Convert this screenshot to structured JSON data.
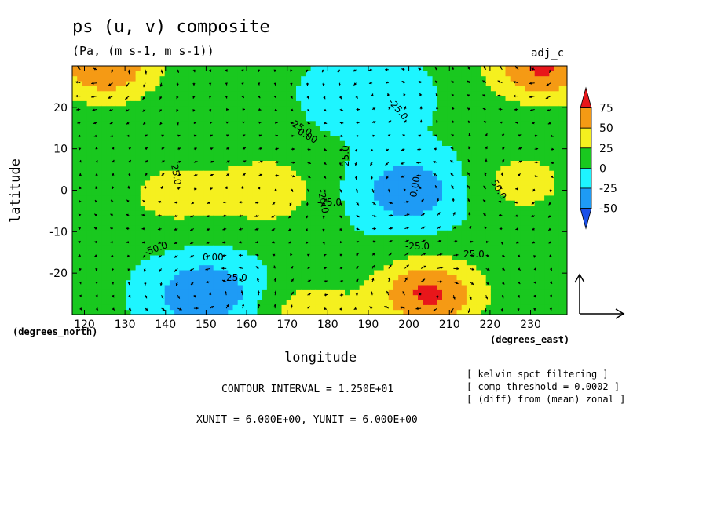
{
  "chart_data": {
    "type": "heatmap",
    "title": "ps (u, v) composite",
    "units_label": "(Pa, (m s-1, m s-1))",
    "experiment": "adj_c",
    "xlabel": "longitude",
    "ylabel": "latitude",
    "x_unit": "(degrees_east)",
    "y_unit": "(degrees_north)",
    "xlim": [
      117,
      239
    ],
    "ylim": [
      -30,
      30
    ],
    "x_ticks": [
      120,
      130,
      140,
      150,
      160,
      170,
      180,
      190,
      200,
      210,
      220,
      230
    ],
    "y_ticks": [
      20,
      10,
      0,
      -10,
      -20
    ],
    "colorbar": {
      "labels": [
        "75",
        "50",
        "25",
        "0",
        "-25",
        "-50"
      ],
      "colors": [
        "#e8161a",
        "#f59a14",
        "#f5f01f",
        "#19c81f",
        "#1ef5ff",
        "#1e9bf5",
        "#1a50e8"
      ]
    },
    "contour_labels": [
      "-25.0",
      "0.00",
      "25.0",
      "-25.0",
      "-25.0",
      "25.0",
      "-25.0",
      "0.00",
      "-25.0",
      "-50.0",
      "0.00",
      "25.0",
      "50.0",
      "25.0"
    ],
    "features": [
      {
        "lon": 165,
        "lat": 0,
        "value": 37
      },
      {
        "lon": 142,
        "lat": -1,
        "value": 30
      },
      {
        "lon": 228,
        "lat": 2,
        "value": 30
      },
      {
        "lon": 200,
        "lat": 0,
        "value": -50
      },
      {
        "lon": 190,
        "lat": 23,
        "value": -30
      },
      {
        "lon": 205,
        "lat": -25,
        "value": 75
      },
      {
        "lon": 233,
        "lat": 30,
        "value": 75
      },
      {
        "lon": 125,
        "lat": 30,
        "value": 70
      },
      {
        "lon": 150,
        "lat": -25,
        "value": -55
      },
      {
        "lon": 175,
        "lat": -30,
        "value": 35
      }
    ]
  },
  "annotations": {
    "contour_interval": "CONTOUR INTERVAL = 1.250E+01",
    "xyunit": "XUNIT = 6.000E+00, YUNIT = 6.000E+00",
    "notes": [
      "[ kelvin spct filtering ]",
      "[ comp threshold = 0.0002 ]",
      "[ (diff) from (mean) zonal ]"
    ]
  }
}
